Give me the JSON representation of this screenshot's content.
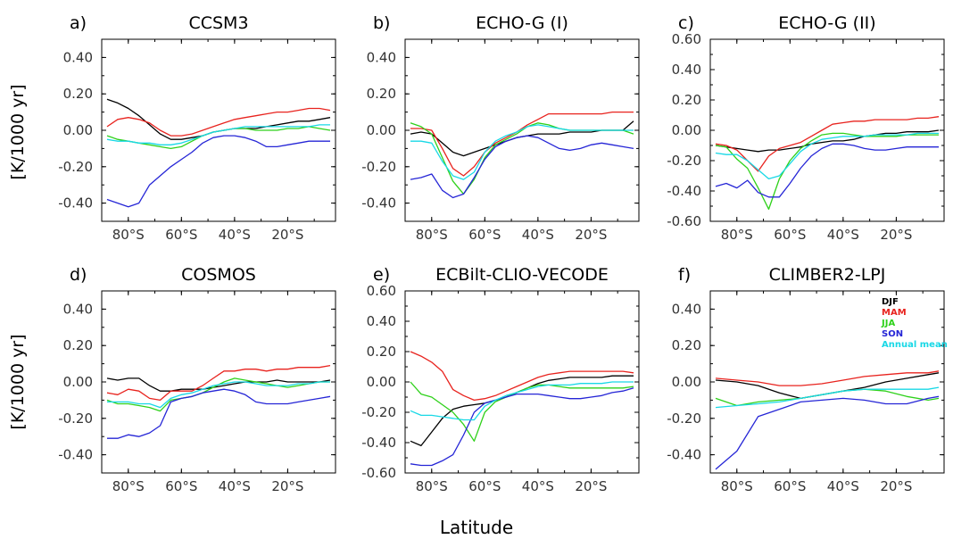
{
  "figure": {
    "xlabel": "Latitude",
    "ylabel": "[K/1000 yr]"
  },
  "legend": {
    "items": [
      {
        "label": "DJF",
        "color": "#000000"
      },
      {
        "label": "MAM",
        "color": "#e8231e"
      },
      {
        "label": "JJA",
        "color": "#2ed11a"
      },
      {
        "label": "SON",
        "color": "#2525d6"
      },
      {
        "label": "Annual mean",
        "color": "#18d8e6"
      }
    ]
  },
  "chart_data": [
    {
      "type": "line",
      "letter": "a)",
      "title": "CCSM3",
      "ylim": [
        -0.5,
        0.5
      ],
      "yticks": [
        "0.40",
        "0.20",
        "0.00",
        "-0.20",
        "-0.40"
      ],
      "xticks": [
        "80°S",
        "60°S",
        "40°S",
        "20°S"
      ],
      "x": [
        -88,
        -84,
        -80,
        -76,
        -72,
        -68,
        -64,
        -60,
        -56,
        -52,
        -48,
        -44,
        -40,
        -36,
        -32,
        -28,
        -24,
        -20,
        -16,
        -12,
        -8,
        -4
      ],
      "series": [
        {
          "name": "DJF",
          "color": "#000000",
          "values": [
            0.17,
            0.15,
            0.12,
            0.08,
            0.03,
            -0.02,
            -0.05,
            -0.05,
            -0.04,
            -0.03,
            -0.01,
            0.0,
            0.01,
            0.01,
            0.01,
            0.02,
            0.03,
            0.04,
            0.05,
            0.05,
            0.06,
            0.07
          ]
        },
        {
          "name": "MAM",
          "color": "#e8231e",
          "values": [
            0.02,
            0.06,
            0.07,
            0.06,
            0.04,
            0.0,
            -0.03,
            -0.03,
            -0.02,
            0.0,
            0.02,
            0.04,
            0.06,
            0.07,
            0.08,
            0.09,
            0.1,
            0.1,
            0.11,
            0.12,
            0.12,
            0.11
          ]
        },
        {
          "name": "JJA",
          "color": "#2ed11a",
          "values": [
            -0.03,
            -0.05,
            -0.06,
            -0.07,
            -0.08,
            -0.09,
            -0.1,
            -0.09,
            -0.06,
            -0.03,
            -0.01,
            0.0,
            0.01,
            0.01,
            0.0,
            0.0,
            0.0,
            0.01,
            0.01,
            0.02,
            0.01,
            0.0
          ]
        },
        {
          "name": "SON",
          "color": "#2525d6",
          "values": [
            -0.38,
            -0.4,
            -0.42,
            -0.4,
            -0.3,
            -0.25,
            -0.2,
            -0.16,
            -0.12,
            -0.07,
            -0.04,
            -0.03,
            -0.03,
            -0.04,
            -0.06,
            -0.09,
            -0.09,
            -0.08,
            -0.07,
            -0.06,
            -0.06,
            -0.06
          ]
        },
        {
          "name": "Annual mean",
          "color": "#18d8e6",
          "values": [
            -0.05,
            -0.06,
            -0.06,
            -0.07,
            -0.07,
            -0.08,
            -0.08,
            -0.07,
            -0.05,
            -0.03,
            -0.01,
            0.0,
            0.01,
            0.02,
            0.02,
            0.02,
            0.02,
            0.02,
            0.02,
            0.02,
            0.03,
            0.03
          ]
        }
      ]
    },
    {
      "type": "line",
      "letter": "b)",
      "title": "ECHO-G (I)",
      "ylim": [
        -0.5,
        0.5
      ],
      "yticks": [
        "0.40",
        "0.20",
        "0.00",
        "-0.20",
        "-0.40"
      ],
      "xticks": [
        "80°S",
        "60°S",
        "40°S",
        "20°S"
      ],
      "x": [
        -88,
        -84,
        -80,
        -76,
        -72,
        -68,
        -64,
        -60,
        -56,
        -52,
        -48,
        -44,
        -40,
        -36,
        -32,
        -28,
        -24,
        -20,
        -16,
        -12,
        -8,
        -4
      ],
      "series": [
        {
          "name": "DJF",
          "color": "#000000",
          "values": [
            -0.02,
            -0.01,
            -0.02,
            -0.07,
            -0.12,
            -0.14,
            -0.12,
            -0.1,
            -0.08,
            -0.06,
            -0.04,
            -0.03,
            -0.02,
            -0.02,
            -0.02,
            -0.01,
            -0.01,
            -0.01,
            0.0,
            0.0,
            0.0,
            0.05
          ]
        },
        {
          "name": "MAM",
          "color": "#e8231e",
          "values": [
            0.01,
            0.01,
            0.0,
            -0.1,
            -0.21,
            -0.25,
            -0.2,
            -0.12,
            -0.07,
            -0.04,
            -0.01,
            0.03,
            0.06,
            0.09,
            0.09,
            0.09,
            0.09,
            0.09,
            0.09,
            0.1,
            0.1,
            0.1
          ]
        },
        {
          "name": "JJA",
          "color": "#2ed11a",
          "values": [
            0.04,
            0.02,
            -0.02,
            -0.15,
            -0.28,
            -0.35,
            -0.27,
            -0.15,
            -0.08,
            -0.05,
            -0.02,
            0.02,
            0.04,
            0.03,
            0.01,
            0.0,
            0.0,
            0.0,
            0.0,
            0.0,
            0.0,
            -0.02
          ]
        },
        {
          "name": "SON",
          "color": "#2525d6",
          "values": [
            -0.27,
            -0.26,
            -0.24,
            -0.33,
            -0.37,
            -0.35,
            -0.26,
            -0.16,
            -0.09,
            -0.06,
            -0.04,
            -0.03,
            -0.04,
            -0.07,
            -0.1,
            -0.11,
            -0.1,
            -0.08,
            -0.07,
            -0.08,
            -0.09,
            -0.1
          ]
        },
        {
          "name": "Annual mean",
          "color": "#18d8e6",
          "values": [
            -0.06,
            -0.06,
            -0.07,
            -0.17,
            -0.25,
            -0.27,
            -0.23,
            -0.12,
            -0.06,
            -0.03,
            -0.01,
            0.02,
            0.03,
            0.02,
            0.01,
            0.0,
            0.0,
            0.0,
            0.0,
            0.0,
            0.0,
            0.0
          ]
        }
      ]
    },
    {
      "type": "line",
      "letter": "c)",
      "title": "ECHO-G (II)",
      "ylim": [
        -0.6,
        0.6
      ],
      "yticks": [
        "0.60",
        "0.40",
        "0.20",
        "0.00",
        "-0.20",
        "-0.40",
        "-0.60"
      ],
      "xticks": [
        "80°S",
        "60°S",
        "40°S",
        "20°S"
      ],
      "x": [
        -88,
        -84,
        -80,
        -76,
        -72,
        -68,
        -64,
        -60,
        -56,
        -52,
        -48,
        -44,
        -40,
        -36,
        -32,
        -28,
        -24,
        -20,
        -16,
        -12,
        -8,
        -4
      ],
      "series": [
        {
          "name": "DJF",
          "color": "#000000",
          "values": [
            -0.1,
            -0.11,
            -0.12,
            -0.13,
            -0.14,
            -0.13,
            -0.13,
            -0.12,
            -0.11,
            -0.09,
            -0.08,
            -0.07,
            -0.07,
            -0.06,
            -0.04,
            -0.03,
            -0.02,
            -0.02,
            -0.01,
            -0.01,
            -0.01,
            0.0
          ]
        },
        {
          "name": "MAM",
          "color": "#e8231e",
          "values": [
            -0.09,
            -0.1,
            -0.13,
            -0.2,
            -0.27,
            -0.17,
            -0.12,
            -0.1,
            -0.08,
            -0.04,
            0.0,
            0.04,
            0.05,
            0.06,
            0.06,
            0.07,
            0.07,
            0.07,
            0.07,
            0.08,
            0.08,
            0.09
          ]
        },
        {
          "name": "JJA",
          "color": "#2ed11a",
          "values": [
            -0.1,
            -0.11,
            -0.19,
            -0.25,
            -0.38,
            -0.52,
            -0.32,
            -0.2,
            -0.12,
            -0.07,
            -0.03,
            -0.02,
            -0.02,
            -0.03,
            -0.04,
            -0.04,
            -0.04,
            -0.04,
            -0.03,
            -0.03,
            -0.03,
            -0.03
          ]
        },
        {
          "name": "SON",
          "color": "#2525d6",
          "values": [
            -0.37,
            -0.35,
            -0.38,
            -0.33,
            -0.41,
            -0.44,
            -0.44,
            -0.35,
            -0.25,
            -0.17,
            -0.12,
            -0.09,
            -0.09,
            -0.1,
            -0.12,
            -0.13,
            -0.13,
            -0.12,
            -0.11,
            -0.11,
            -0.11,
            -0.11
          ]
        },
        {
          "name": "Annual mean",
          "color": "#18d8e6",
          "values": [
            -0.15,
            -0.16,
            -0.16,
            -0.2,
            -0.26,
            -0.32,
            -0.3,
            -0.22,
            -0.14,
            -0.09,
            -0.06,
            -0.05,
            -0.04,
            -0.04,
            -0.04,
            -0.03,
            -0.03,
            -0.03,
            -0.03,
            -0.02,
            -0.02,
            -0.02
          ]
        }
      ]
    },
    {
      "type": "line",
      "letter": "d)",
      "title": "COSMOS",
      "ylim": [
        -0.5,
        0.5
      ],
      "yticks": [
        "0.40",
        "0.20",
        "0.00",
        "-0.20",
        "-0.40"
      ],
      "xticks": [
        "80°S",
        "60°S",
        "40°S",
        "20°S"
      ],
      "x": [
        -88,
        -84,
        -80,
        -76,
        -72,
        -68,
        -64,
        -60,
        -56,
        -52,
        -48,
        -44,
        -40,
        -36,
        -32,
        -28,
        -24,
        -20,
        -16,
        -12,
        -8,
        -4
      ],
      "series": [
        {
          "name": "DJF",
          "color": "#000000",
          "values": [
            0.02,
            0.01,
            0.02,
            0.02,
            -0.02,
            -0.05,
            -0.05,
            -0.04,
            -0.04,
            -0.04,
            -0.03,
            -0.02,
            -0.01,
            0.0,
            0.0,
            0.0,
            0.01,
            0.0,
            0.0,
            0.0,
            0.0,
            0.01
          ]
        },
        {
          "name": "MAM",
          "color": "#e8231e",
          "values": [
            -0.06,
            -0.07,
            -0.04,
            -0.05,
            -0.09,
            -0.1,
            -0.05,
            -0.05,
            -0.05,
            -0.02,
            0.02,
            0.06,
            0.06,
            0.07,
            0.07,
            0.06,
            0.07,
            0.07,
            0.08,
            0.08,
            0.08,
            0.09
          ]
        },
        {
          "name": "JJA",
          "color": "#2ed11a",
          "values": [
            -0.1,
            -0.12,
            -0.12,
            -0.13,
            -0.14,
            -0.16,
            -0.1,
            -0.09,
            -0.08,
            -0.06,
            -0.03,
            0.0,
            0.02,
            0.01,
            0.0,
            -0.01,
            -0.02,
            -0.03,
            -0.02,
            -0.01,
            0.0,
            0.0
          ]
        },
        {
          "name": "SON",
          "color": "#2525d6",
          "values": [
            -0.31,
            -0.31,
            -0.29,
            -0.3,
            -0.28,
            -0.24,
            -0.11,
            -0.09,
            -0.08,
            -0.06,
            -0.05,
            -0.04,
            -0.05,
            -0.07,
            -0.11,
            -0.12,
            -0.12,
            -0.12,
            -0.11,
            -0.1,
            -0.09,
            -0.08
          ]
        },
        {
          "name": "Annual mean",
          "color": "#18d8e6",
          "values": [
            -0.11,
            -0.11,
            -0.11,
            -0.12,
            -0.12,
            -0.14,
            -0.09,
            -0.07,
            -0.06,
            -0.04,
            -0.02,
            -0.01,
            0.0,
            0.0,
            -0.01,
            -0.02,
            -0.02,
            -0.02,
            -0.01,
            -0.01,
            0.0,
            0.0
          ]
        }
      ]
    },
    {
      "type": "line",
      "letter": "e)",
      "title": "ECBilt-CLIO-VECODE",
      "ylim": [
        -0.6,
        0.6
      ],
      "yticks": [
        "0.60",
        "0.40",
        "0.20",
        "0.00",
        "-0.20",
        "-0.40",
        "-0.60"
      ],
      "xticks": [
        "80°S",
        "60°S",
        "40°S",
        "20°S"
      ],
      "x": [
        -88,
        -84,
        -80,
        -76,
        -72,
        -68,
        -64,
        -60,
        -56,
        -52,
        -48,
        -44,
        -40,
        -36,
        -32,
        -28,
        -24,
        -20,
        -16,
        -12,
        -8,
        -4
      ],
      "series": [
        {
          "name": "DJF",
          "color": "#000000",
          "values": [
            -0.39,
            -0.42,
            -0.33,
            -0.24,
            -0.18,
            -0.16,
            -0.15,
            -0.14,
            -0.12,
            -0.1,
            -0.07,
            -0.04,
            -0.01,
            0.01,
            0.02,
            0.03,
            0.03,
            0.03,
            0.03,
            0.04,
            0.04,
            0.04
          ]
        },
        {
          "name": "MAM",
          "color": "#e8231e",
          "values": [
            0.2,
            0.17,
            0.13,
            0.07,
            -0.05,
            -0.09,
            -0.12,
            -0.11,
            -0.09,
            -0.06,
            -0.03,
            0.0,
            0.03,
            0.05,
            0.06,
            0.07,
            0.07,
            0.07,
            0.07,
            0.07,
            0.07,
            0.06
          ]
        },
        {
          "name": "JJA",
          "color": "#2ed11a",
          "values": [
            0.0,
            -0.08,
            -0.1,
            -0.15,
            -0.2,
            -0.28,
            -0.39,
            -0.2,
            -0.13,
            -0.1,
            -0.07,
            -0.04,
            -0.02,
            -0.02,
            -0.03,
            -0.04,
            -0.04,
            -0.04,
            -0.04,
            -0.04,
            -0.04,
            -0.03
          ]
        },
        {
          "name": "SON",
          "color": "#2525d6",
          "values": [
            -0.54,
            -0.55,
            -0.55,
            -0.52,
            -0.48,
            -0.35,
            -0.2,
            -0.14,
            -0.12,
            -0.1,
            -0.08,
            -0.08,
            -0.08,
            -0.09,
            -0.1,
            -0.11,
            -0.11,
            -0.1,
            -0.09,
            -0.07,
            -0.06,
            -0.04
          ]
        },
        {
          "name": "Annual mean",
          "color": "#18d8e6",
          "values": [
            -0.19,
            -0.22,
            -0.22,
            -0.23,
            -0.24,
            -0.25,
            -0.25,
            -0.16,
            -0.12,
            -0.09,
            -0.07,
            -0.05,
            -0.03,
            -0.02,
            -0.02,
            -0.02,
            -0.01,
            -0.01,
            -0.01,
            0.0,
            0.0,
            0.0
          ]
        }
      ]
    },
    {
      "type": "line",
      "letter": "f)",
      "title": "CLIMBER2-LPJ",
      "ylim": [
        -0.5,
        0.5
      ],
      "yticks": [
        "0.40",
        "0.20",
        "0.00",
        "-0.20",
        "-0.40"
      ],
      "xticks": [
        "80°S",
        "60°S",
        "40°S",
        "20°S"
      ],
      "x": [
        -88,
        -80,
        -72,
        -64,
        -56,
        -48,
        -40,
        -32,
        -24,
        -16,
        -8,
        -4
      ],
      "series": [
        {
          "name": "DJF",
          "color": "#000000",
          "values": [
            0.01,
            0.0,
            -0.02,
            -0.06,
            -0.09,
            -0.07,
            -0.05,
            -0.03,
            0.0,
            0.02,
            0.04,
            0.05
          ]
        },
        {
          "name": "MAM",
          "color": "#e8231e",
          "values": [
            0.02,
            0.01,
            0.0,
            -0.02,
            -0.02,
            -0.01,
            0.01,
            0.03,
            0.04,
            0.05,
            0.05,
            0.06
          ]
        },
        {
          "name": "JJA",
          "color": "#2ed11a",
          "values": [
            -0.09,
            -0.13,
            -0.11,
            -0.1,
            -0.09,
            -0.07,
            -0.05,
            -0.04,
            -0.05,
            -0.08,
            -0.1,
            -0.09
          ]
        },
        {
          "name": "SON",
          "color": "#2525d6",
          "values": [
            -0.48,
            -0.38,
            -0.19,
            -0.15,
            -0.11,
            -0.1,
            -0.09,
            -0.1,
            -0.12,
            -0.12,
            -0.09,
            -0.08
          ]
        },
        {
          "name": "Annual mean",
          "color": "#18d8e6",
          "values": [
            -0.14,
            -0.13,
            -0.12,
            -0.11,
            -0.09,
            -0.07,
            -0.05,
            -0.04,
            -0.04,
            -0.04,
            -0.04,
            -0.03
          ]
        }
      ]
    }
  ]
}
